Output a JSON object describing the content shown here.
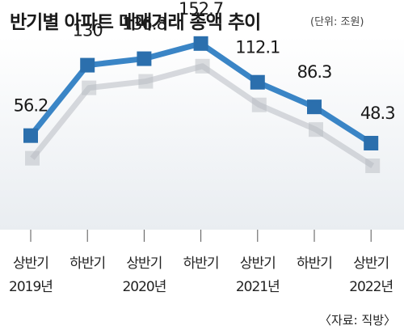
{
  "header": {
    "title": "반기별 아파트 매매거래 총액 추이",
    "unit": "(단위: 조원)"
  },
  "source": "〈자료: 직방〉",
  "colors": {
    "line": "#3a85c6",
    "marker": "#2b6fad",
    "shadow": "#b8bcc2",
    "background_bottom": "#e9edf1"
  },
  "chart_data": {
    "type": "line",
    "title": "반기별 아파트 매매거래 총액 추이",
    "unit": "(단위: 조원)",
    "categories": [
      [
        "상반기",
        "2019년"
      ],
      [
        "하반기",
        ""
      ],
      [
        "상반기",
        "2020년"
      ],
      [
        "하반기",
        ""
      ],
      [
        "상반기",
        "2021년"
      ],
      [
        "하반기",
        ""
      ],
      [
        "상반기",
        "2022년"
      ]
    ],
    "series": [
      {
        "values": [
          56.2,
          130,
          136.8,
          152.7,
          112.1,
          86.3,
          48.3
        ],
        "labels": [
          "56.2",
          "130",
          "136.8",
          "152.7",
          "112.1",
          "86.3",
          "48.3"
        ]
      }
    ],
    "ylim": [
      0,
      200
    ],
    "grid": false,
    "legend": "none"
  }
}
